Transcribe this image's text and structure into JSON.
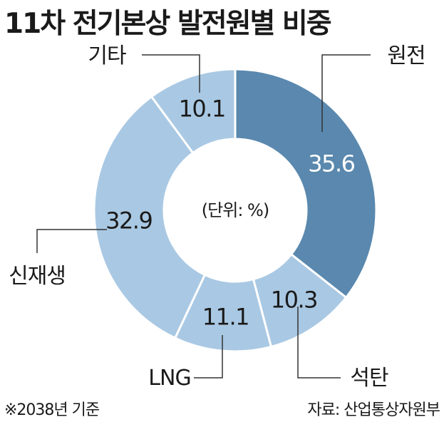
{
  "chart_data": {
    "type": "pie",
    "title": "11차 전기본상 발전원별 비중",
    "unit_label": "(단위: %)",
    "slices": [
      {
        "label": "원전",
        "value": 35.6,
        "value_text": "35.6",
        "color": "#5a88ae"
      },
      {
        "label": "석탄",
        "value": 10.3,
        "value_text": "10.3",
        "color": "#a9c8e3"
      },
      {
        "label": "LNG",
        "value": 11.1,
        "value_text": "11.1",
        "color": "#a9c8e3"
      },
      {
        "label": "신재생",
        "value": 32.9,
        "value_text": "32.9",
        "color": "#a9c8e3"
      },
      {
        "label": "기타",
        "value": 10.1,
        "value_text": "10.1",
        "color": "#a9c8e3"
      }
    ],
    "footnote": "※2038년 기준",
    "source": "자료: 산업통상자원부"
  },
  "colors": {
    "highlight": "#5a88ae",
    "base": "#a9c8e3",
    "separator": "#ffffff"
  }
}
